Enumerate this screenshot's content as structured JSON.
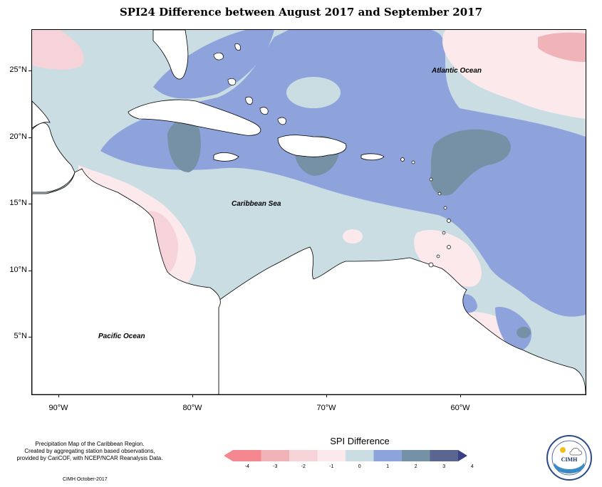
{
  "title": "SPI24 Difference between August 2017 and September 2017",
  "map": {
    "latitude_labels": [
      "25°N",
      "20°N",
      "15°N",
      "10°N",
      "5°N"
    ],
    "longitude_labels": [
      "90°W",
      "80°W",
      "70°W",
      "60°W"
    ],
    "regions": {
      "atlantic": "Atlantic Ocean",
      "caribbean": "Caribbean Sea",
      "pacific": "Pacific Ocean"
    }
  },
  "notes": {
    "line1": "Precipitation Map of the Caribbean Region.",
    "line2": "Created by aggregating station based observations,",
    "line3": "provided by CariCOF, with NCEP/NCAR Reanalysis Data.",
    "credit": "CIMH October-2017"
  },
  "legend": {
    "title": "SPI Difference",
    "labels": [
      "-4",
      "-3",
      "-2",
      "-1",
      "0",
      "1",
      "2",
      "3",
      "4"
    ],
    "colors": [
      "#f4868f",
      "#f0b3b8",
      "#f6d3d8",
      "#fbe9ec",
      "#c9dde3",
      "#8ea3dc",
      "#7690a6",
      "#5b6690",
      "#3b3f88"
    ]
  },
  "logo": {
    "text": "CIMH"
  }
}
